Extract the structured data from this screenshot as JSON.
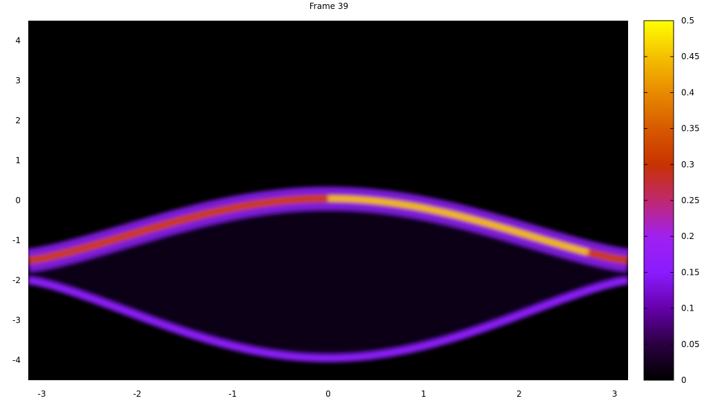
{
  "chart_data": {
    "type": "heatmap",
    "title": "Frame 39",
    "xlabel": "",
    "ylabel": "",
    "xlim": [
      -3.14159,
      3.14159
    ],
    "ylim": [
      -4.5,
      4.5
    ],
    "x_ticks": [
      -3,
      -2,
      -1,
      0,
      1,
      2,
      3
    ],
    "y_ticks": [
      4,
      3,
      2,
      1,
      0,
      -1,
      -2,
      -3,
      -4
    ],
    "colorbar": {
      "min": 0,
      "max": 0.5,
      "ticks": [
        "0",
        "0.05",
        "0.1",
        "0.15",
        "0.2",
        "0.25",
        "0.3",
        "0.35",
        "0.4",
        "0.45",
        "0.5"
      ],
      "colormap": [
        "#000000",
        "#2a0040",
        "#6600aa",
        "#8a1cff",
        "#a020f0",
        "#c0286e",
        "#c83200",
        "#d85a00",
        "#e88a00",
        "#f4c000",
        "#ffff00"
      ]
    },
    "structures": {
      "upper_curve_y_center": 0.05,
      "upper_curve_y_edge": -1.5,
      "lower_curve_y_center": -3.95,
      "lower_curve_y_edge": -2.0,
      "peak_value": 0.45,
      "peak_x_range": [
        0,
        2.8
      ],
      "grid": false,
      "legend": "right"
    }
  }
}
